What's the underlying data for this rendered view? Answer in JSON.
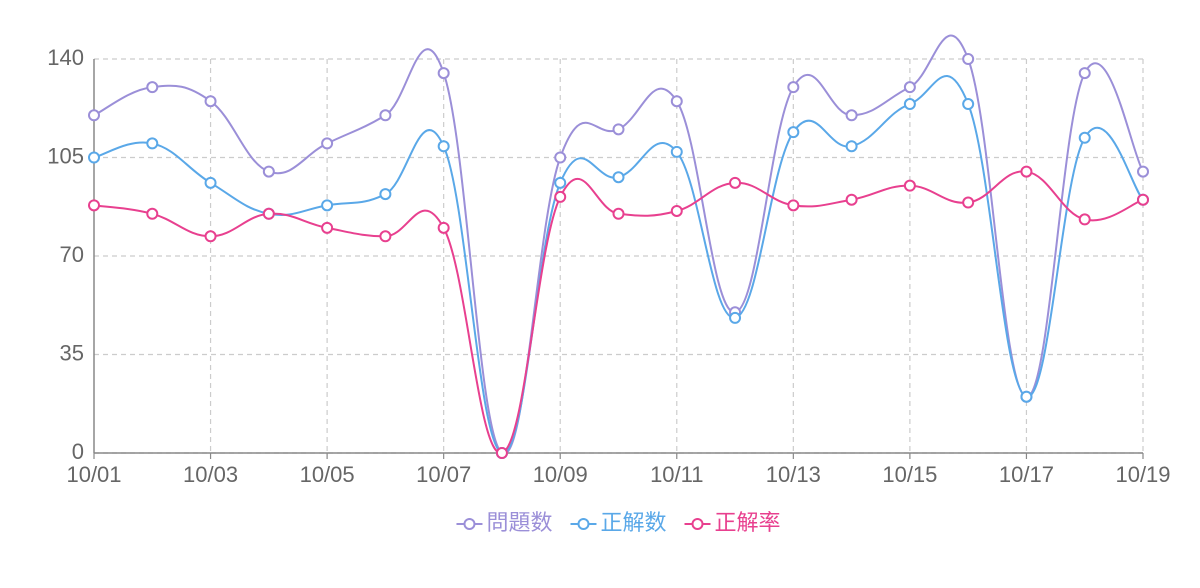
{
  "chart_data": {
    "type": "line",
    "categories": [
      "10/01",
      null,
      "10/03",
      null,
      "10/05",
      null,
      "10/07",
      null,
      "10/09",
      null,
      "10/11",
      null,
      "10/13",
      null,
      "10/15",
      null,
      "10/17",
      null,
      "10/19"
    ],
    "series": [
      {
        "name": "問題数",
        "color": "#9b8fd8",
        "values": [
          120,
          130,
          125,
          100,
          110,
          120,
          135,
          0,
          105,
          115,
          125,
          50,
          130,
          120,
          130,
          140,
          20,
          135,
          100
        ]
      },
      {
        "name": "正解数",
        "color": "#5aa8e8",
        "values": [
          105,
          110,
          96,
          85,
          88,
          92,
          109,
          0,
          96,
          98,
          107,
          48,
          114,
          109,
          124,
          124,
          20,
          112,
          90
        ]
      },
      {
        "name": "正解率",
        "color": "#e8408f",
        "values": [
          88,
          85,
          77,
          85,
          80,
          77,
          80,
          0,
          91,
          85,
          86,
          96,
          88,
          90,
          95,
          89,
          100,
          83,
          90
        ]
      }
    ],
    "ylim": [
      0,
      140
    ],
    "yticks": [
      0,
      35,
      70,
      105,
      140
    ],
    "grid": true,
    "legend": "bottom"
  }
}
